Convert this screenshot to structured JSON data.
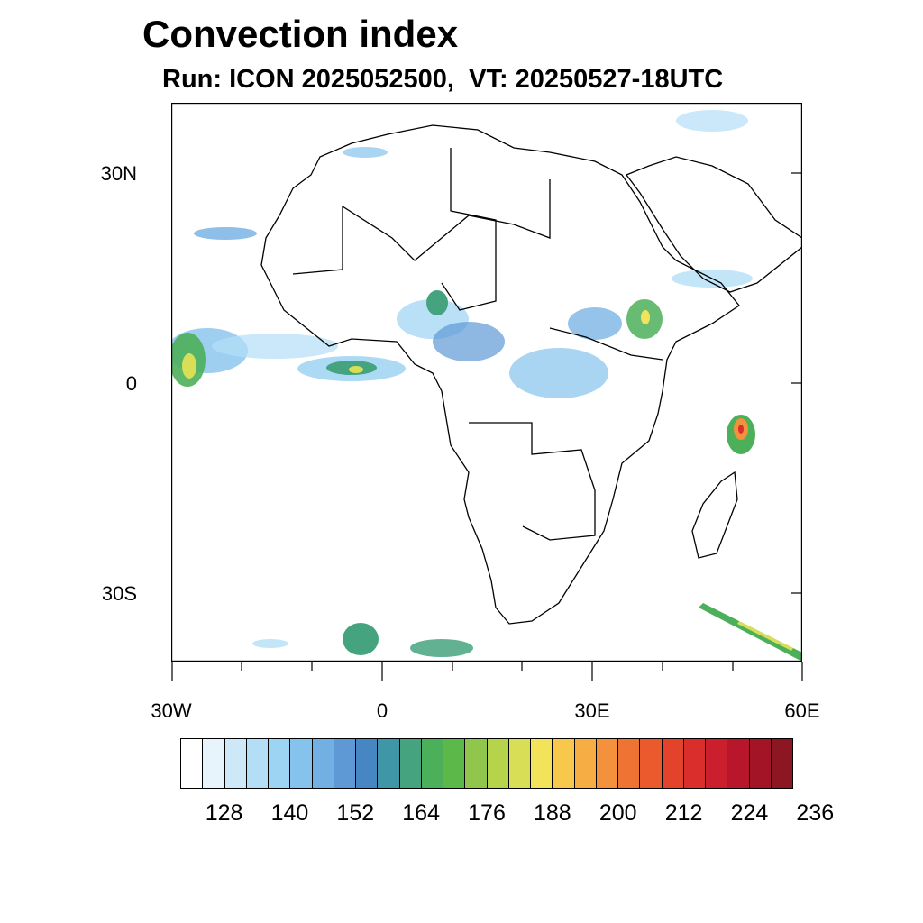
{
  "title": "Convection index",
  "subtitle": "Run: ICON 2025052500,  VT: 20250527-18UTC",
  "axes": {
    "lat_labels": [
      "30N",
      "0",
      "30S"
    ],
    "lon_labels": [
      "30W",
      "0",
      "30E",
      "60E"
    ]
  },
  "map_extent": {
    "lon": [
      -30,
      60
    ],
    "lat": [
      -40,
      40
    ]
  },
  "colorbar": {
    "colors": [
      "#ffffff",
      "#e8f4fc",
      "#cde9f8",
      "#b4def6",
      "#9dd3f3",
      "#86c3ec",
      "#72afe2",
      "#5e99d5",
      "#4686c2",
      "#3f96a6",
      "#45a37f",
      "#4caf5a",
      "#5bb849",
      "#8fc64b",
      "#b6d34c",
      "#d8df56",
      "#f2e35a",
      "#f8c84d",
      "#f6ad44",
      "#f3913d",
      "#ef7434",
      "#ea5a2d",
      "#e3432b",
      "#d92e2c",
      "#cc1f2d",
      "#b8172b",
      "#a31427",
      "#8c1622"
    ],
    "labels": [
      "128",
      "140",
      "152",
      "164",
      "176",
      "188",
      "200",
      "212",
      "224",
      "236"
    ]
  }
}
